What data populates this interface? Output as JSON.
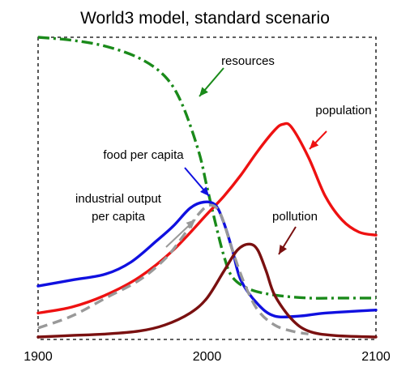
{
  "chart_data": {
    "type": "line",
    "title": "World3 model, standard scenario",
    "xlabel": "",
    "ylabel": "",
    "xlim": [
      1900,
      2100
    ],
    "ylim": [
      0,
      1
    ],
    "x_ticks": [
      "1900",
      "2000",
      "2100"
    ],
    "grid": false,
    "series": [
      {
        "name": "resources",
        "color": "#1a8a1a",
        "style": "dash-dot",
        "points": [
          [
            1900,
            1.0
          ],
          [
            1920,
            0.99
          ],
          [
            1940,
            0.97
          ],
          [
            1960,
            0.93
          ],
          [
            1975,
            0.87
          ],
          [
            1985,
            0.78
          ],
          [
            1995,
            0.62
          ],
          [
            2000,
            0.5
          ],
          [
            2005,
            0.38
          ],
          [
            2010,
            0.27
          ],
          [
            2015,
            0.2
          ],
          [
            2025,
            0.16
          ],
          [
            2040,
            0.14
          ],
          [
            2060,
            0.13
          ],
          [
            2080,
            0.13
          ],
          [
            2100,
            0.13
          ]
        ]
      },
      {
        "name": "population",
        "color": "#ee1111",
        "style": "solid",
        "points": [
          [
            1900,
            0.08
          ],
          [
            1920,
            0.1
          ],
          [
            1940,
            0.14
          ],
          [
            1960,
            0.2
          ],
          [
            1980,
            0.29
          ],
          [
            2000,
            0.41
          ],
          [
            2010,
            0.47
          ],
          [
            2020,
            0.54
          ],
          [
            2030,
            0.62
          ],
          [
            2040,
            0.69
          ],
          [
            2045,
            0.71
          ],
          [
            2050,
            0.7
          ],
          [
            2060,
            0.6
          ],
          [
            2070,
            0.47
          ],
          [
            2080,
            0.39
          ],
          [
            2090,
            0.35
          ],
          [
            2100,
            0.34
          ]
        ]
      },
      {
        "name": "food per capita",
        "color": "#1010e0",
        "style": "solid",
        "points": [
          [
            1900,
            0.17
          ],
          [
            1920,
            0.19
          ],
          [
            1940,
            0.21
          ],
          [
            1955,
            0.25
          ],
          [
            1970,
            0.32
          ],
          [
            1980,
            0.37
          ],
          [
            1990,
            0.43
          ],
          [
            1998,
            0.45
          ],
          [
            2005,
            0.44
          ],
          [
            2010,
            0.38
          ],
          [
            2015,
            0.29
          ],
          [
            2020,
            0.19
          ],
          [
            2030,
            0.11
          ],
          [
            2040,
            0.07
          ],
          [
            2055,
            0.07
          ],
          [
            2070,
            0.08
          ],
          [
            2100,
            0.09
          ]
        ]
      },
      {
        "name": "industrial output per capita",
        "color": "#999999",
        "style": "dash",
        "points": [
          [
            1900,
            0.03
          ],
          [
            1920,
            0.07
          ],
          [
            1940,
            0.13
          ],
          [
            1960,
            0.19
          ],
          [
            1975,
            0.26
          ],
          [
            1985,
            0.33
          ],
          [
            1995,
            0.41
          ],
          [
            2002,
            0.44
          ],
          [
            2008,
            0.41
          ],
          [
            2015,
            0.29
          ],
          [
            2022,
            0.18
          ],
          [
            2030,
            0.09
          ],
          [
            2040,
            0.04
          ],
          [
            2050,
            0.02
          ],
          [
            2060,
            0.01
          ]
        ]
      },
      {
        "name": "pollution",
        "color": "#7a1010",
        "style": "solid",
        "points": [
          [
            1900,
            0.0
          ],
          [
            1920,
            0.005
          ],
          [
            1940,
            0.01
          ],
          [
            1960,
            0.02
          ],
          [
            1975,
            0.04
          ],
          [
            1990,
            0.08
          ],
          [
            2000,
            0.13
          ],
          [
            2010,
            0.22
          ],
          [
            2018,
            0.29
          ],
          [
            2025,
            0.31
          ],
          [
            2030,
            0.29
          ],
          [
            2035,
            0.22
          ],
          [
            2040,
            0.14
          ],
          [
            2050,
            0.06
          ],
          [
            2060,
            0.02
          ],
          [
            2075,
            0.005
          ],
          [
            2100,
            0.0
          ]
        ]
      }
    ],
    "annotations": [
      {
        "series": "resources",
        "lines": [
          "resources"
        ]
      },
      {
        "series": "population",
        "lines": [
          "population"
        ]
      },
      {
        "series": "food per capita",
        "lines": [
          "food per capita"
        ]
      },
      {
        "series": "industrial output per capita",
        "lines": [
          "industrial output",
          "per capita"
        ]
      },
      {
        "series": "pollution",
        "lines": [
          "pollution"
        ]
      }
    ]
  }
}
